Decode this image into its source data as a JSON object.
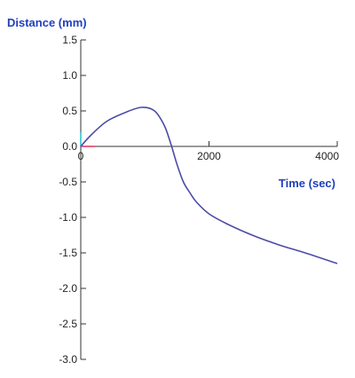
{
  "chart_data": {
    "type": "line",
    "title": "",
    "xlabel": "Time (sec)",
    "ylabel": "Distance (mm)",
    "xlim": [
      0,
      4000
    ],
    "ylim": [
      -3.0,
      1.5
    ],
    "x_ticks": [
      0,
      2000,
      4000
    ],
    "x_tick_labels": [
      "0",
      "2000",
      "4000"
    ],
    "y_ticks": [
      1.5,
      1.0,
      0.5,
      0.0,
      -0.5,
      -1.0,
      -1.5,
      -2.0,
      -2.5,
      -3.0
    ],
    "y_tick_labels": [
      "1.5",
      "1.0",
      "0.5",
      "0.0",
      "-0.5",
      "-1.0",
      "-1.5",
      "-2.0",
      "-2.5",
      "-3.0"
    ],
    "grid": false,
    "legend": "none",
    "series": [
      {
        "color": "#4b4ba8",
        "x": [
          0,
          150,
          400,
          700,
          950,
          1150,
          1300,
          1400,
          1500,
          1600,
          1700,
          1800,
          2000,
          2300,
          2700,
          3100,
          3500,
          4000
        ],
        "y": [
          0.0,
          0.15,
          0.35,
          0.48,
          0.55,
          0.5,
          0.3,
          0.05,
          -0.25,
          -0.5,
          -0.65,
          -0.78,
          -0.95,
          -1.1,
          -1.26,
          -1.39,
          -1.5,
          -1.65
        ]
      }
    ],
    "colors": {
      "axis_title": "#1f3fbf",
      "series": "#4b4ba8",
      "x_marker": "#e8638a",
      "y_marker": "#57d2d8"
    }
  }
}
